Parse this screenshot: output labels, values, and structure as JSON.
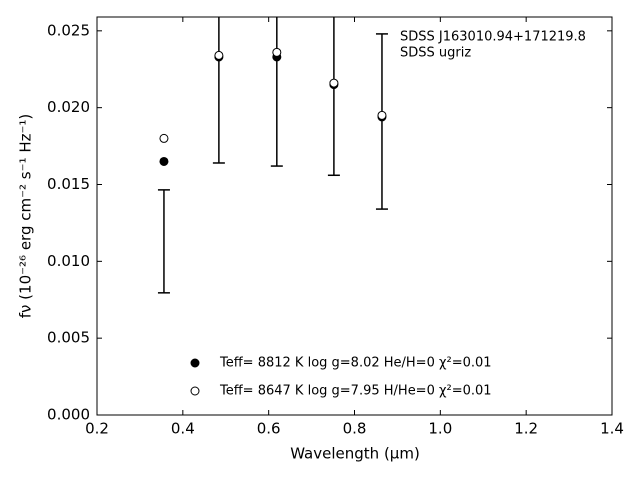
{
  "chart_data": {
    "type": "scatter",
    "annotations": [
      "SDSS J163010.94+171219.8",
      "SDSS ugriz"
    ],
    "xlabel": "Wavelength (μm)",
    "ylabel": "fν (10⁻²⁶ erg cm⁻² s⁻¹ Hz⁻¹)",
    "x": [
      0.356,
      0.484,
      0.619,
      0.752,
      0.864
    ],
    "series": [
      {
        "marker": "errorbar",
        "color": "#000000",
        "values": [
          0.0113,
          0.0235,
          0.0234,
          0.0216,
          0.0191
        ],
        "errors": [
          0.00335,
          0.0071,
          0.0072,
          0.006,
          0.0057
        ]
      },
      {
        "name": "Teff=  8812 K  log g=8.02  He/H=0  χ²=0.01",
        "marker": "filled",
        "color": "#000000",
        "values": [
          0.0165,
          0.0233,
          0.0233,
          0.0215,
          0.0194
        ]
      },
      {
        "name": "Teff=  8647 K  log g=7.95  H/He=0  χ²=0.01",
        "marker": "open",
        "color": "#000000",
        "values": [
          0.018,
          0.0234,
          0.0236,
          0.0216,
          0.0195
        ]
      }
    ],
    "xlim": [
      0.2,
      1.4
    ],
    "ylim": [
      0,
      0.0259
    ],
    "xticks": [
      0.2,
      0.4,
      0.6,
      0.8,
      {
        "value": 1.0,
        "label": "1.0"
      },
      1.2,
      1.4
    ],
    "yticks": [
      {
        "value": 0,
        "label": "0.000"
      },
      0.005,
      {
        "value": 0.01,
        "label": "0.010"
      },
      0.015,
      {
        "value": 0.02,
        "label": "0.020"
      },
      0.025
    ],
    "legend": "lower center"
  }
}
